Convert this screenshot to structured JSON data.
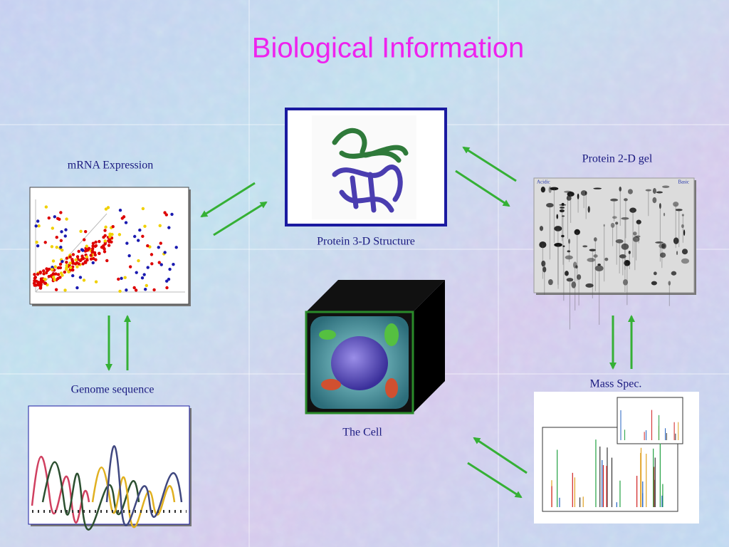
{
  "title": "Biological Information",
  "nodes": [
    {
      "label": "mRNA Expression"
    },
    {
      "label": "Protein 3-D Structure"
    },
    {
      "label": "Protein 2-D gel"
    },
    {
      "label": "Genome sequence"
    },
    {
      "label": "The Cell"
    },
    {
      "label": "Mass Spec."
    }
  ],
  "gel_labels": [
    "Acidic",
    "Basic"
  ]
}
